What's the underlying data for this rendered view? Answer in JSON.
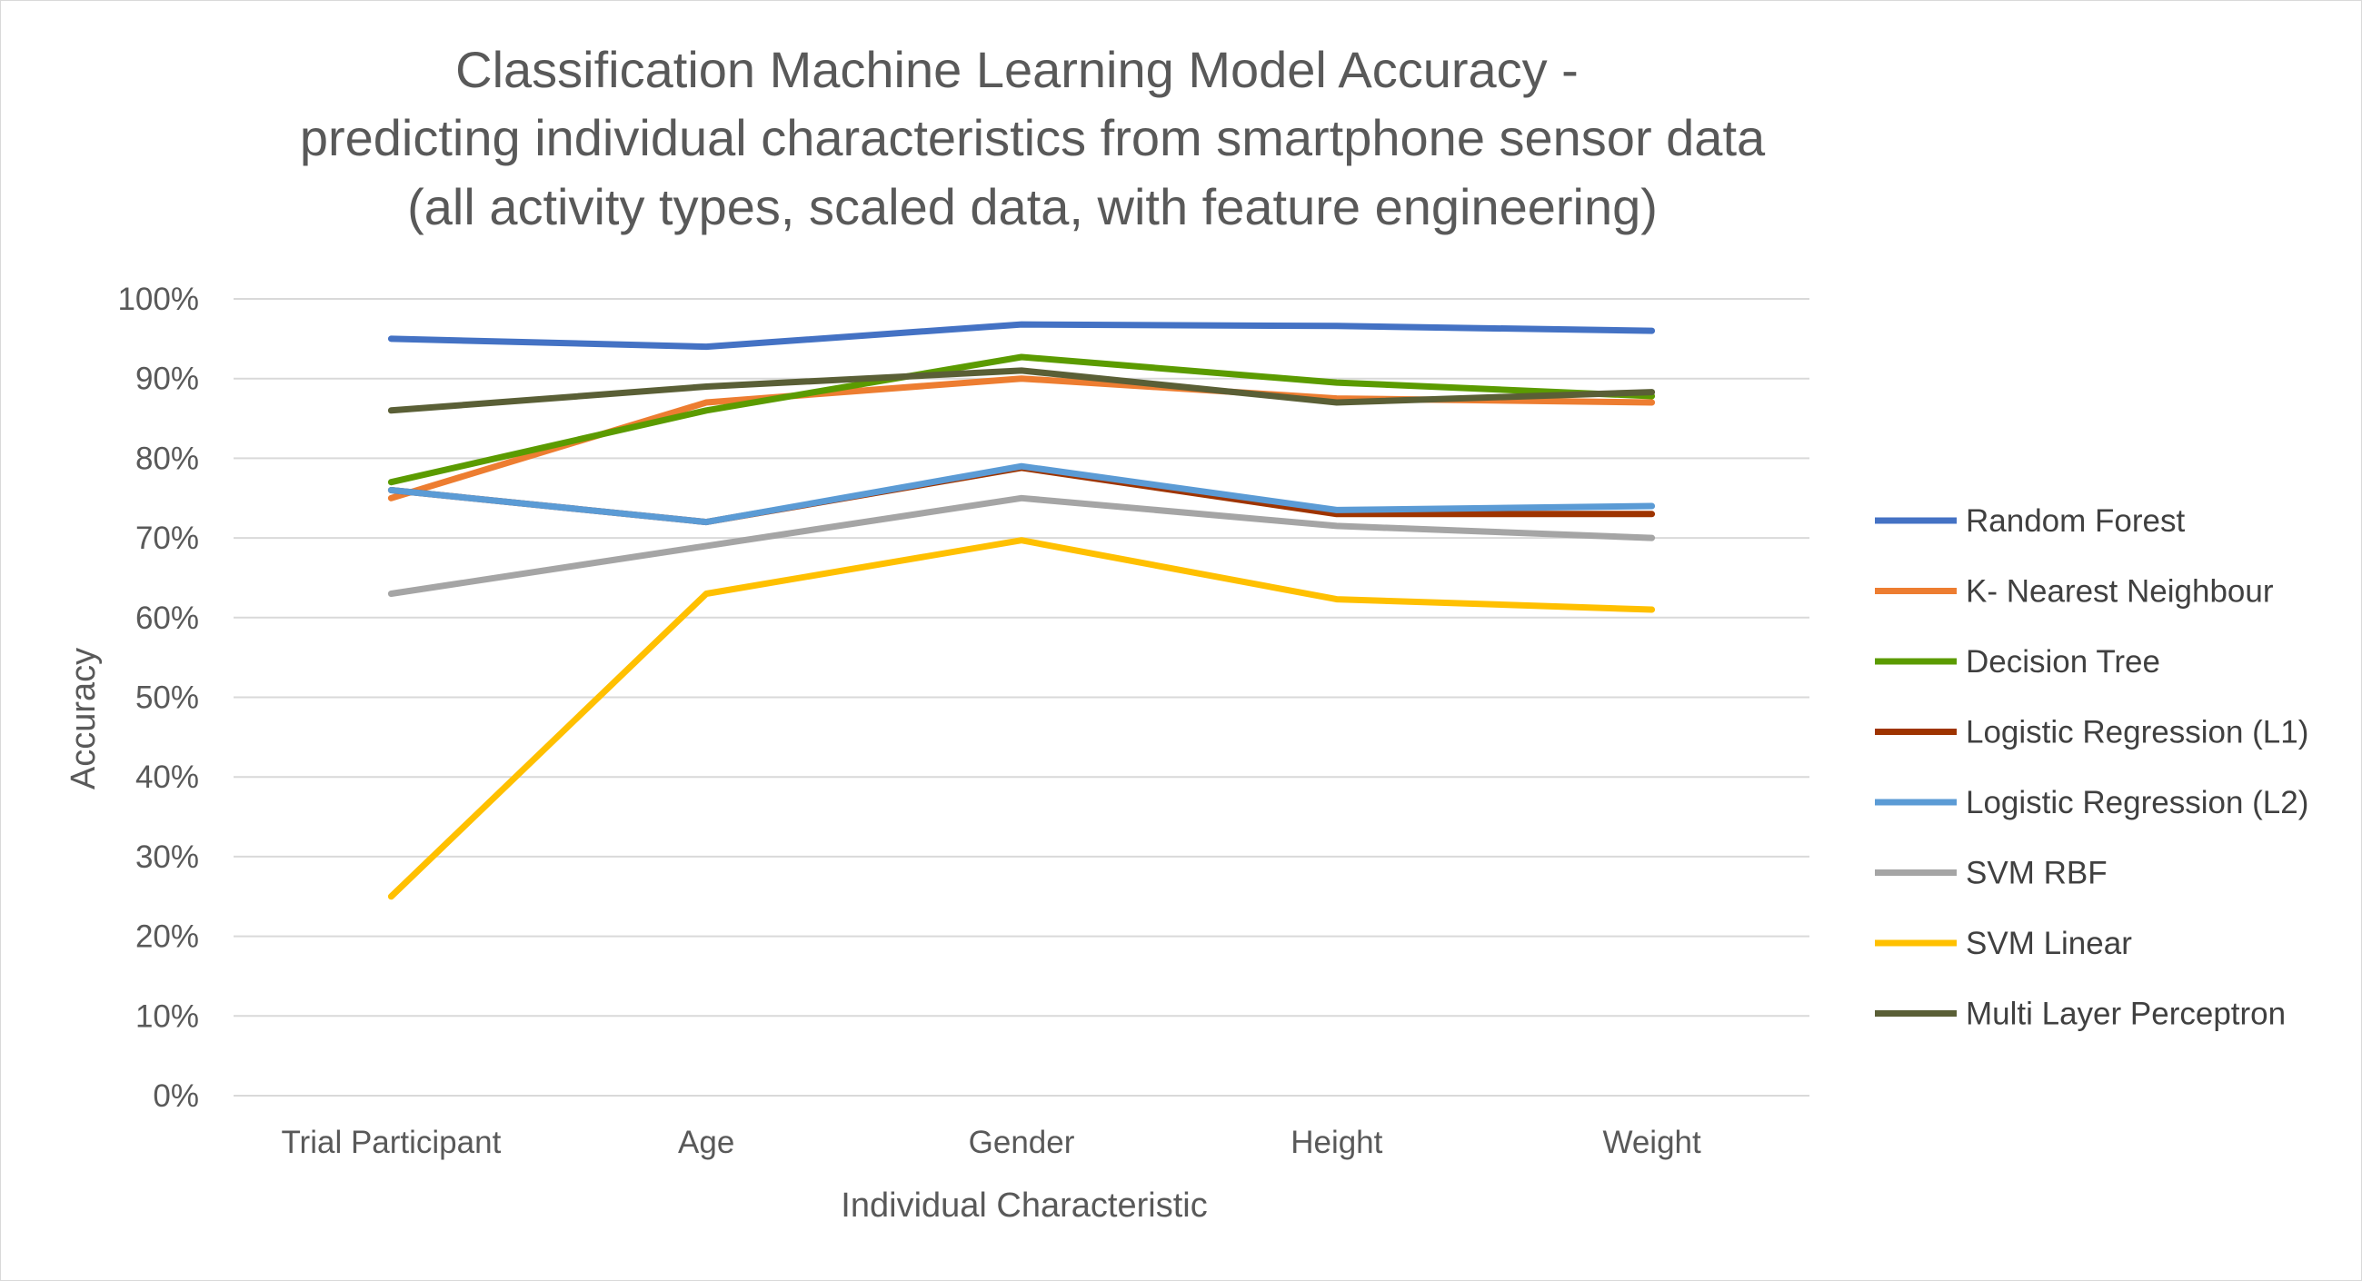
{
  "chart_data": {
    "type": "line",
    "title_lines": [
      "Classification Machine Learning Model Accuracy -",
      "predicting individual characteristics from smartphone sensor data",
      "(all activity types, scaled data, with feature engineering)"
    ],
    "xlabel": "Individual Characteristic",
    "ylabel": "Accuracy",
    "categories": [
      "Trial Participant",
      "Age",
      "Gender",
      "Height",
      "Weight"
    ],
    "ylim": [
      0,
      100
    ],
    "yticks": [
      "0%",
      "10%",
      "20%",
      "30%",
      "40%",
      "50%",
      "60%",
      "70%",
      "80%",
      "90%",
      "100%"
    ],
    "grid": "horizontal",
    "legend": "right",
    "series": [
      {
        "name": "Random Forest",
        "color": "#4472C4",
        "values": [
          95,
          94,
          96.8,
          96.6,
          96
        ]
      },
      {
        "name": "K- Nearest Neighbour",
        "color": "#ED7D31",
        "values": [
          75,
          87,
          90,
          87.5,
          87
        ]
      },
      {
        "name": "Decision Tree",
        "color": "#5B9B00",
        "values": [
          77,
          86,
          92.7,
          89.5,
          87.8
        ]
      },
      {
        "name": "Logistic Regression (L1)",
        "color": "#9E3400",
        "values": [
          76,
          72,
          78.8,
          73,
          73
        ]
      },
      {
        "name": "Logistic Regression (L2)",
        "color": "#5B9BD5",
        "values": [
          76,
          72,
          79,
          73.5,
          74
        ]
      },
      {
        "name": "SVM RBF",
        "color": "#A5A5A5",
        "values": [
          63,
          69,
          75,
          71.5,
          70
        ]
      },
      {
        "name": "SVM Linear",
        "color": "#FFC000",
        "values": [
          25,
          63,
          69.7,
          62.3,
          61
        ]
      },
      {
        "name": "Multi Layer Perceptron",
        "color": "#5A5F36",
        "values": [
          86,
          89,
          91,
          87,
          88.3
        ]
      }
    ]
  }
}
